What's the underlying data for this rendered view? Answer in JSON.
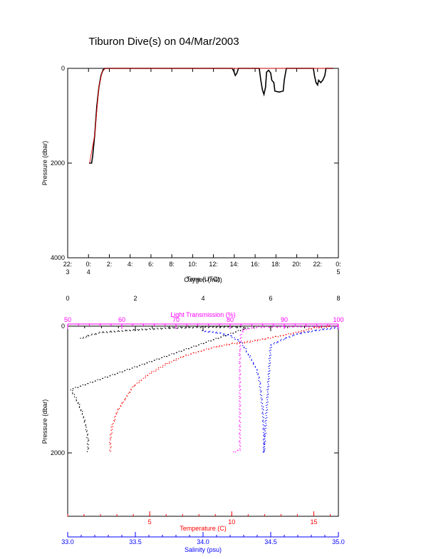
{
  "page": {
    "title": "Tiburon Dive(s) on 04/Mar/2003"
  },
  "colors": {
    "axis": "#000000",
    "pressure": "#000000",
    "pressure_overlay": "#ff0000",
    "temperature": "#ff0000",
    "salinity": "#0000ff",
    "oxygen": "#000000",
    "light_transmission": "#ff00ff"
  },
  "chart_data": [
    {
      "type": "line",
      "title": "Tiburon Dive(s) on 04/Mar/2003",
      "xlabel": "Time (UTC)",
      "ylabel": "Pressure (dbar)",
      "xlim": [
        -2,
        24
      ],
      "ylim": [
        4000,
        0
      ],
      "x_ticks": [
        {
          "value": -2,
          "line1": "22:",
          "line2": "3"
        },
        {
          "value": 0,
          "line1": "0:",
          "line2": "4"
        },
        {
          "value": 2,
          "line1": "2:",
          "line2": ""
        },
        {
          "value": 4,
          "line1": "4:",
          "line2": ""
        },
        {
          "value": 6,
          "line1": "6:",
          "line2": ""
        },
        {
          "value": 8,
          "line1": "8:",
          "line2": ""
        },
        {
          "value": 10,
          "line1": "10:",
          "line2": ""
        },
        {
          "value": 12,
          "line1": "12:",
          "line2": ""
        },
        {
          "value": 14,
          "line1": "14:",
          "line2": ""
        },
        {
          "value": 16,
          "line1": "16:",
          "line2": ""
        },
        {
          "value": 18,
          "line1": "18:",
          "line2": ""
        },
        {
          "value": 20,
          "line1": "20:",
          "line2": ""
        },
        {
          "value": 22,
          "line1": "22:",
          "line2": ""
        },
        {
          "value": 24,
          "line1": "0:",
          "line2": "5"
        }
      ],
      "y_ticks": [
        0,
        2000,
        4000
      ],
      "series": [
        {
          "color": "#000000",
          "points": [
            [
              0.05,
              2000
            ],
            [
              0.3,
              2000
            ],
            [
              0.4,
              1850
            ],
            [
              0.6,
              1400
            ],
            [
              0.8,
              800
            ],
            [
              1.0,
              400
            ],
            [
              1.2,
              150
            ],
            [
              1.4,
              30
            ],
            [
              1.6,
              0
            ],
            [
              13.8,
              0
            ],
            [
              13.95,
              60
            ],
            [
              14.1,
              150
            ],
            [
              14.25,
              100
            ],
            [
              14.4,
              0
            ],
            [
              16.4,
              0
            ],
            [
              16.55,
              250
            ],
            [
              16.7,
              450
            ],
            [
              16.85,
              550
            ],
            [
              17.0,
              400
            ],
            [
              17.1,
              80
            ],
            [
              17.3,
              40
            ],
            [
              17.5,
              100
            ],
            [
              17.6,
              250
            ],
            [
              17.8,
              300
            ],
            [
              17.9,
              480
            ],
            [
              18.3,
              500
            ],
            [
              18.7,
              480
            ],
            [
              18.8,
              250
            ],
            [
              19.0,
              0
            ],
            [
              21.6,
              0
            ],
            [
              21.7,
              150
            ],
            [
              21.85,
              300
            ],
            [
              22.0,
              350
            ],
            [
              22.1,
              250
            ],
            [
              22.3,
              300
            ],
            [
              22.5,
              250
            ],
            [
              22.7,
              150
            ],
            [
              22.8,
              0
            ],
            [
              23.5,
              0
            ]
          ]
        },
        {
          "color": "#ff0000",
          "points": [
            [
              0.1,
              2000
            ],
            [
              0.6,
              1400
            ],
            [
              1.0,
              400
            ],
            [
              1.3,
              80
            ],
            [
              1.6,
              0
            ],
            [
              13.8,
              0
            ],
            [
              23.5,
              0
            ]
          ]
        }
      ]
    },
    {
      "type": "scatter",
      "ylabel": "Pressure (dbar)",
      "ylim": [
        3000,
        0
      ],
      "y_ticks": [
        0,
        2000
      ],
      "axes": [
        {
          "name": "Oxygen",
          "label": "Oxygen (ml/l)",
          "position": "top",
          "color": "#000000",
          "range": [
            0,
            8
          ],
          "ticks": [
            0,
            2,
            4,
            6,
            8
          ]
        },
        {
          "name": "Light Transmission",
          "label": "Light Transmission (%)",
          "position": "top",
          "color": "#ff00ff",
          "range": [
            50,
            100
          ],
          "ticks": [
            50,
            60,
            70,
            80,
            90,
            100
          ]
        },
        {
          "name": "Temperature",
          "label": "Temperature (C)",
          "position": "bottom",
          "color": "#ff0000",
          "range": [
            0,
            16.5
          ],
          "ticks": [
            5,
            10,
            15
          ]
        },
        {
          "name": "Salinity",
          "label": "Salinity (psu)",
          "position": "bottom",
          "color": "#0000ff",
          "range": [
            33.0,
            35.0
          ],
          "ticks": [
            "33.0",
            "33.5",
            "34.0",
            "34.5",
            "35.0"
          ]
        }
      ],
      "series": [
        {
          "axis": "Oxygen",
          "color": "#000000",
          "points": [
            [
              0.4,
              200
            ],
            [
              0.6,
              150
            ],
            [
              1.0,
              100
            ],
            [
              2.0,
              60
            ],
            [
              3.0,
              30
            ],
            [
              4.0,
              15
            ],
            [
              5.0,
              10
            ],
            [
              5.3,
              30
            ],
            [
              0.1,
              1000
            ],
            [
              0.3,
              1200
            ],
            [
              0.45,
              1400
            ],
            [
              0.55,
              1600
            ],
            [
              0.6,
              1800
            ],
            [
              0.6,
              2000
            ]
          ]
        },
        {
          "axis": "Light Transmission",
          "color": "#ff00ff",
          "points": [
            [
              100,
              0
            ],
            [
              95,
              5
            ],
            [
              90,
              10
            ],
            [
              85,
              20
            ],
            [
              82.5,
              50
            ],
            [
              82.0,
              150
            ],
            [
              81.8,
              400
            ],
            [
              81.8,
              1000
            ],
            [
              81.8,
              1500
            ],
            [
              81.8,
              1950
            ],
            [
              80.5,
              2000
            ]
          ]
        },
        {
          "axis": "Temperature",
          "color": "#ff0000",
          "points": [
            [
              16.0,
              0
            ],
            [
              15.0,
              30
            ],
            [
              14.0,
              100
            ],
            [
              13.0,
              150
            ],
            [
              12.0,
              200
            ],
            [
              11.0,
              250
            ],
            [
              10.0,
              280
            ],
            [
              9.0,
              330
            ],
            [
              8.0,
              400
            ],
            [
              7.0,
              480
            ],
            [
              6.0,
              600
            ],
            [
              5.0,
              750
            ],
            [
              4.0,
              950
            ],
            [
              3.5,
              1150
            ],
            [
              3.0,
              1350
            ],
            [
              2.7,
              1600
            ],
            [
              2.6,
              1800
            ],
            [
              2.6,
              2000
            ]
          ]
        },
        {
          "axis": "Salinity",
          "color": "#0000ff",
          "points": [
            [
              34.0,
              80
            ],
            [
              34.1,
              100
            ],
            [
              34.2,
              150
            ],
            [
              34.28,
              250
            ],
            [
              34.3,
              320
            ],
            [
              34.35,
              500
            ],
            [
              34.4,
              700
            ],
            [
              34.42,
              900
            ],
            [
              34.44,
              1300
            ],
            [
              34.45,
              1700
            ],
            [
              34.45,
              2000
            ],
            [
              34.5,
              300
            ],
            [
              34.6,
              200
            ],
            [
              34.7,
              120
            ],
            [
              34.8,
              80
            ],
            [
              34.9,
              50
            ],
            [
              35.0,
              20
            ]
          ]
        }
      ]
    }
  ]
}
